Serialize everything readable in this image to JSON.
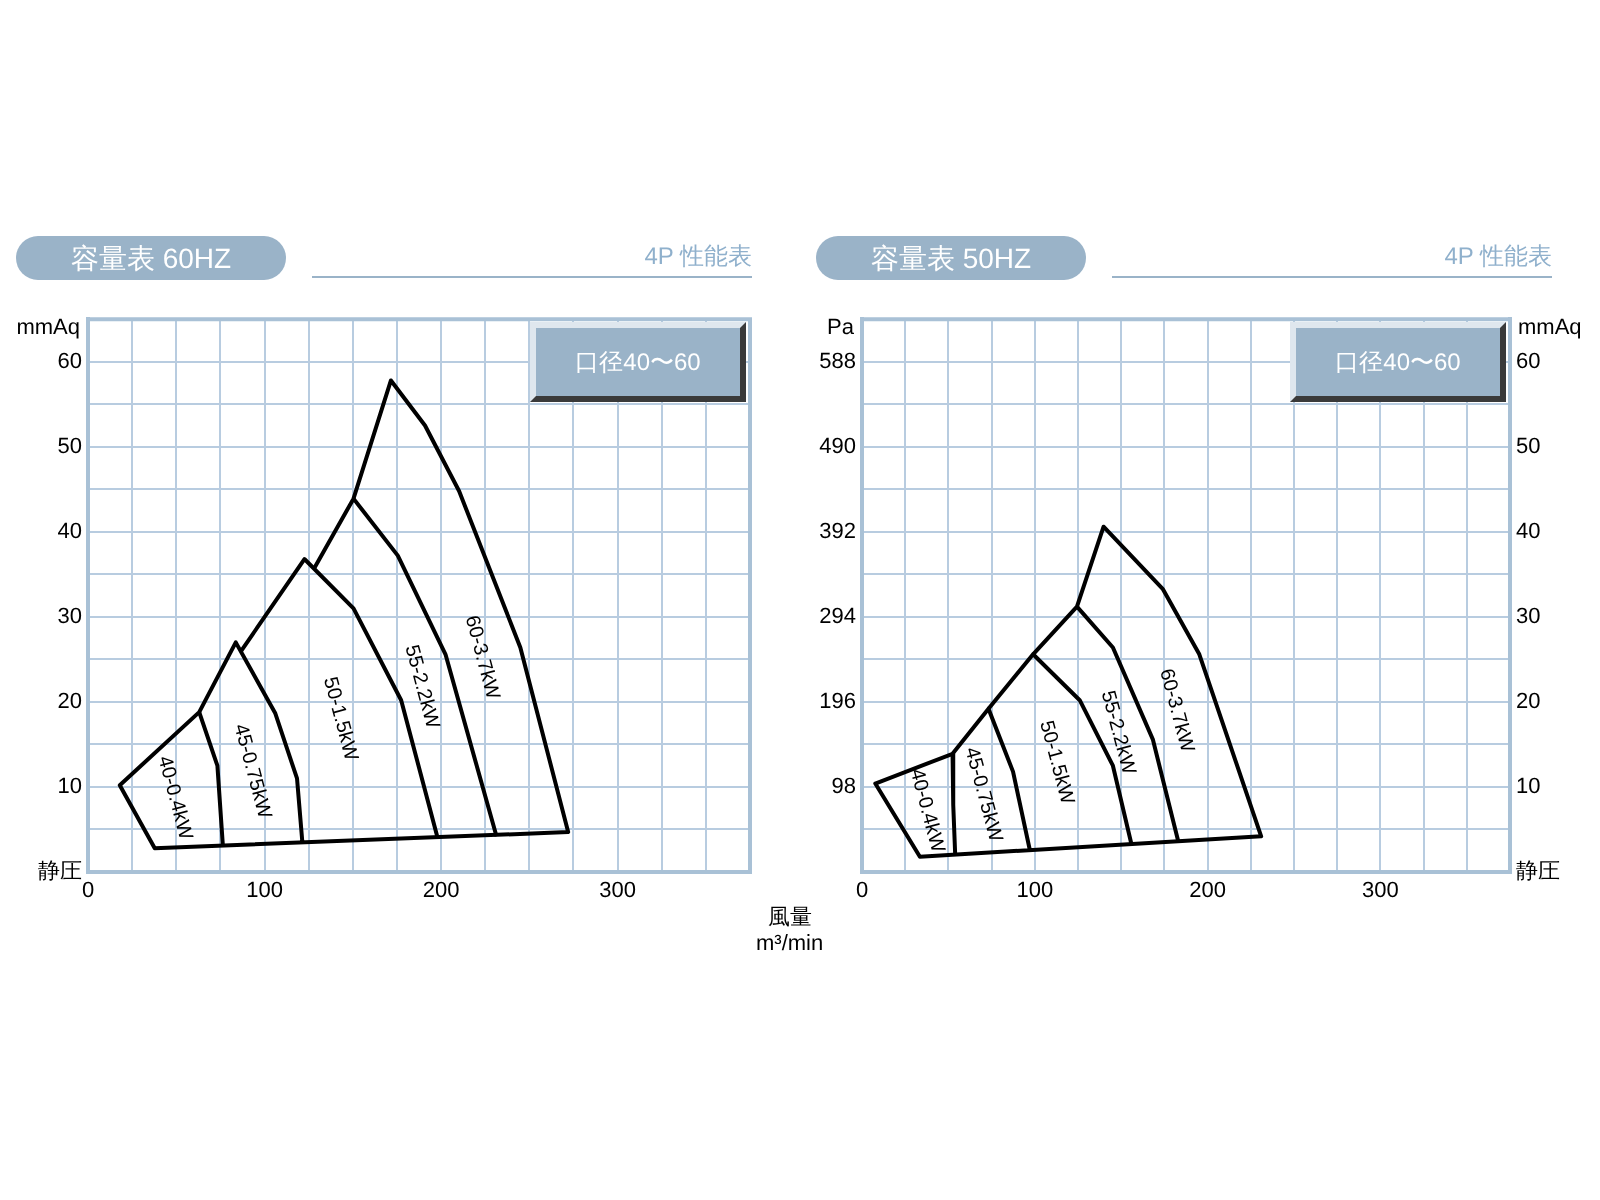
{
  "chart_data": [
    {
      "type": "line",
      "title": "容量表 60HZ",
      "subtitle": "4P 性能表",
      "xlabel": "風量 m³/min",
      "ylabel": "mmAq",
      "annotations": [
        "口径40〜60",
        "40-0.4kW",
        "45-0.75kW",
        "50-1.5kW",
        "55-2.2kW",
        "60-3.7kW"
      ],
      "series": [
        {
          "color": "#000000",
          "x": [
            128.4,
            150.4,
            171.6,
            190.9,
            210.2,
            244.9,
            272,
            37.8,
            18,
            63,
            83.7,
            106,
            118.4,
            121.5
          ],
          "values": [
            35.8,
            43.9,
            57.8,
            52.5,
            44.8,
            26.4,
            4.7,
            2.8,
            10.2,
            18.8,
            27,
            18.7,
            11,
            3.3
          ]
        },
        {
          "color": "#000000",
          "x": [
            63,
            73.3,
            76.4
          ],
          "values": [
            18.8,
            12.5,
            3.1
          ]
        },
        {
          "color": "#000000",
          "x": [
            86.8,
            122.6,
            150.4,
            177.4,
            197.8
          ],
          "values": [
            26,
            36.8,
            31,
            20.2,
            4.2
          ]
        },
        {
          "color": "#000000",
          "x": [
            150.4,
            175.5,
            202.5,
            231.4
          ],
          "values": [
            43.9,
            37.2,
            25.6,
            4.2
          ]
        }
      ],
      "xlim": [
        0,
        375
      ],
      "xticks": [
        0,
        {
          "value": 25,
          "label": null
        },
        {
          "value": 50,
          "label": null
        },
        {
          "value": 75,
          "label": null
        },
        100,
        {
          "value": 125,
          "label": null
        },
        {
          "value": 150,
          "label": null
        },
        {
          "value": 175,
          "label": null
        },
        200,
        {
          "value": 225,
          "label": null
        },
        {
          "value": 250,
          "label": null
        },
        {
          "value": 275,
          "label": null
        },
        300,
        {
          "value": 325,
          "label": null
        },
        {
          "value": 350,
          "label": null
        }
      ],
      "ylim": [
        0,
        65
      ],
      "yticks": [
        {
          "value": 0,
          "label": "静圧"
        },
        {
          "value": 5,
          "label": null
        },
        10,
        {
          "value": 15,
          "label": null
        },
        20,
        {
          "value": 25,
          "label": null
        },
        30,
        {
          "value": 35,
          "label": null
        },
        40,
        {
          "value": 45,
          "label": null
        },
        50,
        {
          "value": 55,
          "label": null
        },
        60
      ],
      "grid": true,
      "legend": false,
      "marker": "none",
      "line_style": "solid"
    },
    {
      "type": "line",
      "title": "容量表 50HZ",
      "subtitle": "4P 性能表",
      "ylabel": "Pa",
      "y2label": "mmAq",
      "annotations": [
        "口径40〜60",
        "40-0.4kW",
        "45-0.75kW",
        "50-1.5kW",
        "55-2.2kW",
        "60-3.7kW"
      ],
      "series": [
        {
          "color": "#000000",
          "axis": "y2",
          "x": [
            99,
            124.4,
            139.8,
            174,
            195.2,
            231,
            33.5,
            7.7,
            52.4,
            73.2,
            87.4,
            97
          ],
          "values": [
            25.6,
            31.2,
            40.6,
            33.3,
            25.6,
            4.2,
            1.8,
            10.4,
            13.9,
            19.2,
            11.8,
            2.7
          ]
        },
        {
          "color": "#000000",
          "axis": "y2",
          "x": [
            52.4,
            52.8,
            53.9
          ],
          "values": [
            13.9,
            7.9,
            2.2
          ]
        },
        {
          "color": "#000000",
          "axis": "y2",
          "x": [
            73.2,
            99,
            126,
            145.2,
            155.9
          ],
          "values": [
            19.2,
            25.6,
            20.2,
            12.5,
            3.3
          ]
        },
        {
          "color": "#000000",
          "axis": "y2",
          "x": [
            124.4,
            145.2,
            168.3,
            182.9
          ],
          "values": [
            31.2,
            26.4,
            15.6,
            3.7
          ]
        }
      ],
      "xlim": [
        0,
        375
      ],
      "xticks": [
        0,
        {
          "value": 25,
          "label": null
        },
        {
          "value": 50,
          "label": null
        },
        {
          "value": 75,
          "label": null
        },
        100,
        {
          "value": 125,
          "label": null
        },
        {
          "value": 150,
          "label": null
        },
        {
          "value": 175,
          "label": null
        },
        200,
        {
          "value": 225,
          "label": null
        },
        {
          "value": 250,
          "label": null
        },
        {
          "value": 275,
          "label": null
        },
        300,
        {
          "value": 325,
          "label": null
        },
        {
          "value": 350,
          "label": null
        }
      ],
      "ylim": [
        0,
        637
      ],
      "yticks": [
        98,
        196,
        294,
        392,
        490,
        588
      ],
      "y2lim": [
        0,
        65
      ],
      "y2ticks": [
        {
          "value": 0,
          "label": "静圧"
        },
        {
          "value": 5,
          "label": null
        },
        10,
        {
          "value": 15,
          "label": null
        },
        20,
        {
          "value": 25,
          "label": null
        },
        30,
        {
          "value": 35,
          "label": null
        },
        40,
        {
          "value": 45,
          "label": null
        },
        50,
        {
          "value": 55,
          "label": null
        },
        60
      ],
      "grid": true,
      "legend": false,
      "marker": "none",
      "line_style": "solid"
    }
  ]
}
